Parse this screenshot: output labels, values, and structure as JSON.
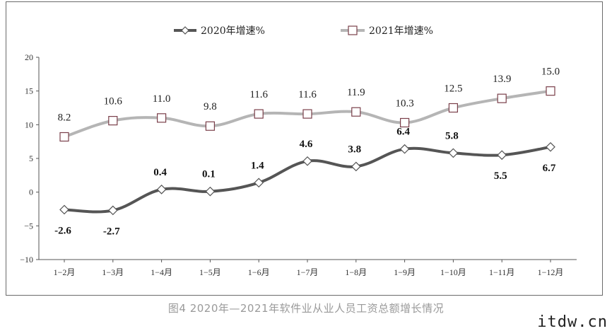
{
  "caption": "图4  2020年—2021年软件业从业人员工资总额增长情况",
  "watermark": "itdw.cn",
  "colors": {
    "s2020": "#555555",
    "s2021": "#b5b5b5",
    "marker_fill": "#ffffff",
    "marker_stroke_2021": "#7a3f4a",
    "marker_stroke_2020": "#555555"
  },
  "chart_data": {
    "type": "line",
    "title": "",
    "xlabel": "",
    "ylabel": "",
    "ylim": [
      -10,
      20
    ],
    "yticks": [
      20,
      15,
      10,
      5,
      0,
      -5,
      -10
    ],
    "ytick_labels": [
      "20",
      "15",
      "10",
      "5",
      "0",
      "−5",
      "−10"
    ],
    "categories": [
      "1−2月",
      "1−3月",
      "1−4月",
      "1−5月",
      "1−6月",
      "1−7月",
      "1−8月",
      "1−9月",
      "1−10月",
      "1−11月",
      "1−12月"
    ],
    "legend_position": "top-center",
    "series": [
      {
        "name": "2020年增速%",
        "marker": "diamond",
        "values": [
          -2.6,
          -2.7,
          0.4,
          0.1,
          1.4,
          4.6,
          3.8,
          6.4,
          5.8,
          5.5,
          6.7
        ],
        "labels": [
          "-2.6",
          "-2.7",
          "0.4",
          "0.1",
          "1.4",
          "4.6",
          "3.8",
          "6.4",
          "5.8",
          "5.5",
          "6.7"
        ],
        "label_side": [
          "below",
          "below",
          "above",
          "above",
          "above",
          "above",
          "above",
          "above",
          "above",
          "below",
          "below"
        ]
      },
      {
        "name": "2021年增速%",
        "marker": "square",
        "values": [
          8.2,
          10.6,
          11.0,
          9.8,
          11.6,
          11.6,
          11.9,
          10.3,
          12.5,
          13.9,
          15.0
        ],
        "labels": [
          "8.2",
          "10.6",
          "11.0",
          "9.8",
          "11.6",
          "11.6",
          "11.9",
          "10.3",
          "12.5",
          "13.9",
          "15.0"
        ],
        "label_side": [
          "above",
          "above",
          "above",
          "above",
          "above",
          "above",
          "above",
          "above",
          "above",
          "above",
          "above"
        ]
      }
    ]
  }
}
